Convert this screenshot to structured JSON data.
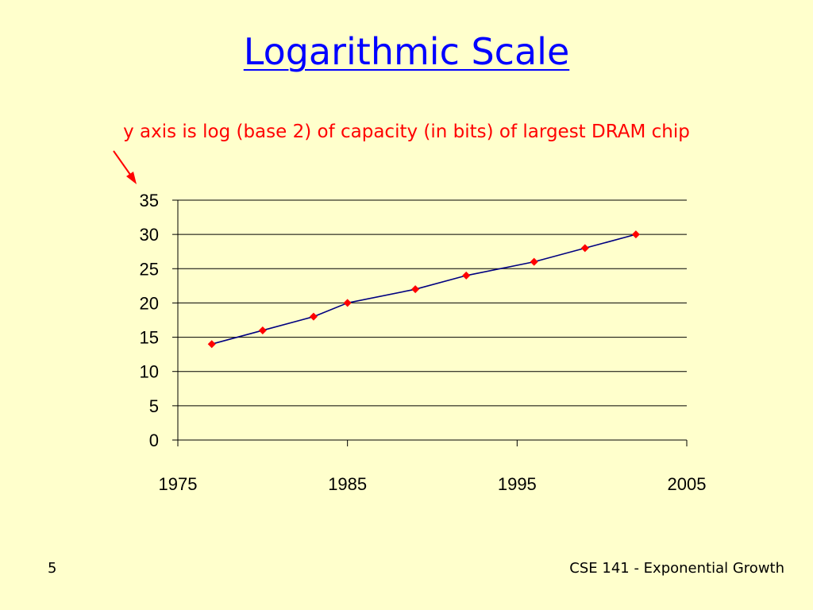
{
  "slide": {
    "title": "Logarithmic Scale",
    "annotation": "y axis is log (base 2) of capacity (in bits) of largest DRAM chip",
    "page_number": "5",
    "footer": "CSE 141 - Exponential Growth"
  },
  "colors": {
    "background": "#ffffcc",
    "title": "#0000ff",
    "annotation": "#ff0000",
    "line": "#000080",
    "marker": "#ff0000"
  },
  "chart_data": {
    "type": "line",
    "xlim": [
      1975,
      2005
    ],
    "ylim": [
      0,
      35
    ],
    "x_ticks": [
      1975,
      1985,
      1995,
      2005
    ],
    "y_ticks": [
      0,
      5,
      10,
      15,
      20,
      25,
      30,
      35
    ],
    "grid": "horizontal",
    "x": [
      1977,
      1980,
      1983,
      1985,
      1989,
      1992,
      1996,
      1999,
      2002
    ],
    "y": [
      14,
      16,
      18,
      20,
      22,
      24,
      26,
      28,
      30
    ]
  }
}
